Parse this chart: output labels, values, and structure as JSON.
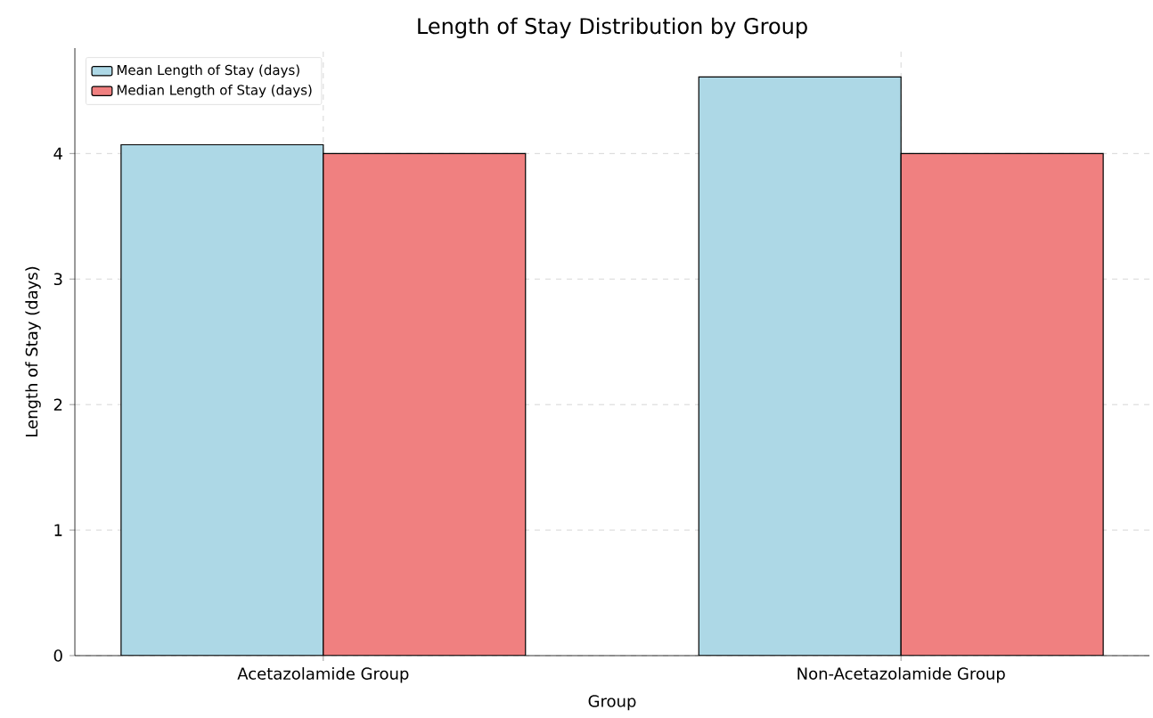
{
  "chart_data": {
    "type": "bar",
    "title": "Length of Stay Distribution by Group",
    "xlabel": "Group",
    "ylabel": "Length of Stay (days)",
    "categories": [
      "Acetazolamide Group",
      "Non-Acetazolamide Group"
    ],
    "series": [
      {
        "name": "Mean Length of Stay (days)",
        "color": "#add8e6",
        "values": [
          4.07,
          4.61
        ]
      },
      {
        "name": "Median Length of Stay (days)",
        "color": "#f08080",
        "values": [
          4.0,
          4.0
        ]
      }
    ],
    "ylim": [
      0,
      4.84
    ],
    "yticks": [
      0,
      1,
      2,
      3,
      4
    ],
    "grid": true,
    "legend": "top left"
  }
}
